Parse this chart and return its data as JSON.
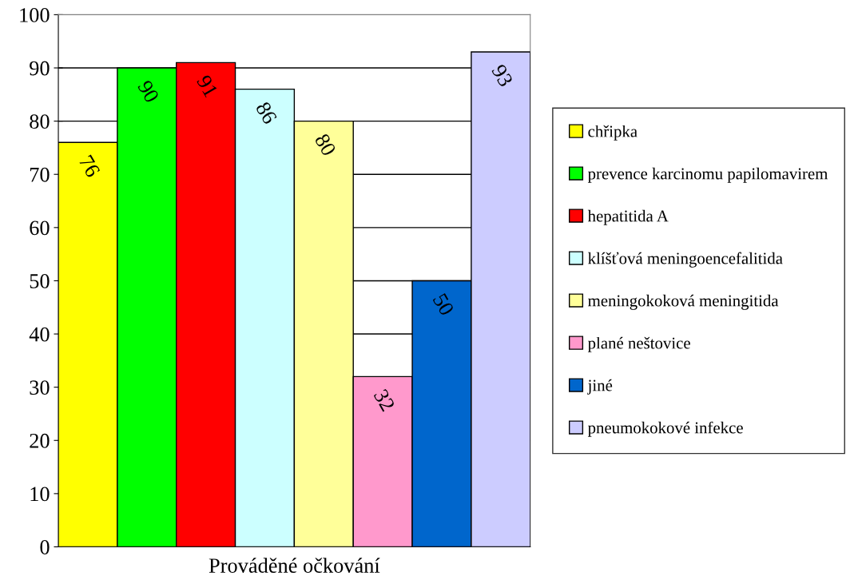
{
  "chart_data": {
    "type": "bar",
    "categories": [
      "Prováděné očkování"
    ],
    "series": [
      {
        "name": "chřipka",
        "color": "#ffff00",
        "values": [
          76
        ]
      },
      {
        "name": "prevence karcinomu papilomavirem",
        "color": "#00ff00",
        "values": [
          90
        ]
      },
      {
        "name": "hepatitida A",
        "color": "#ff0000",
        "values": [
          91
        ]
      },
      {
        "name": "klíšťová meningoencefalitida",
        "color": "#ccffff",
        "values": [
          86
        ]
      },
      {
        "name": "meningokoková meningitida",
        "color": "#ffff99",
        "values": [
          80
        ]
      },
      {
        "name": "plané neštovice",
        "color": "#ff99cc",
        "values": [
          32
        ]
      },
      {
        "name": "jiné",
        "color": "#0066cc",
        "values": [
          50
        ]
      },
      {
        "name": "pneumokokové infekce",
        "color": "#ccccff",
        "values": [
          93
        ]
      }
    ],
    "ylim": [
      0,
      100
    ],
    "yticks": [
      0,
      10,
      20,
      30,
      40,
      50,
      60,
      70,
      80,
      90,
      100
    ],
    "grid": "y",
    "legend": "right",
    "data_labels": true
  }
}
